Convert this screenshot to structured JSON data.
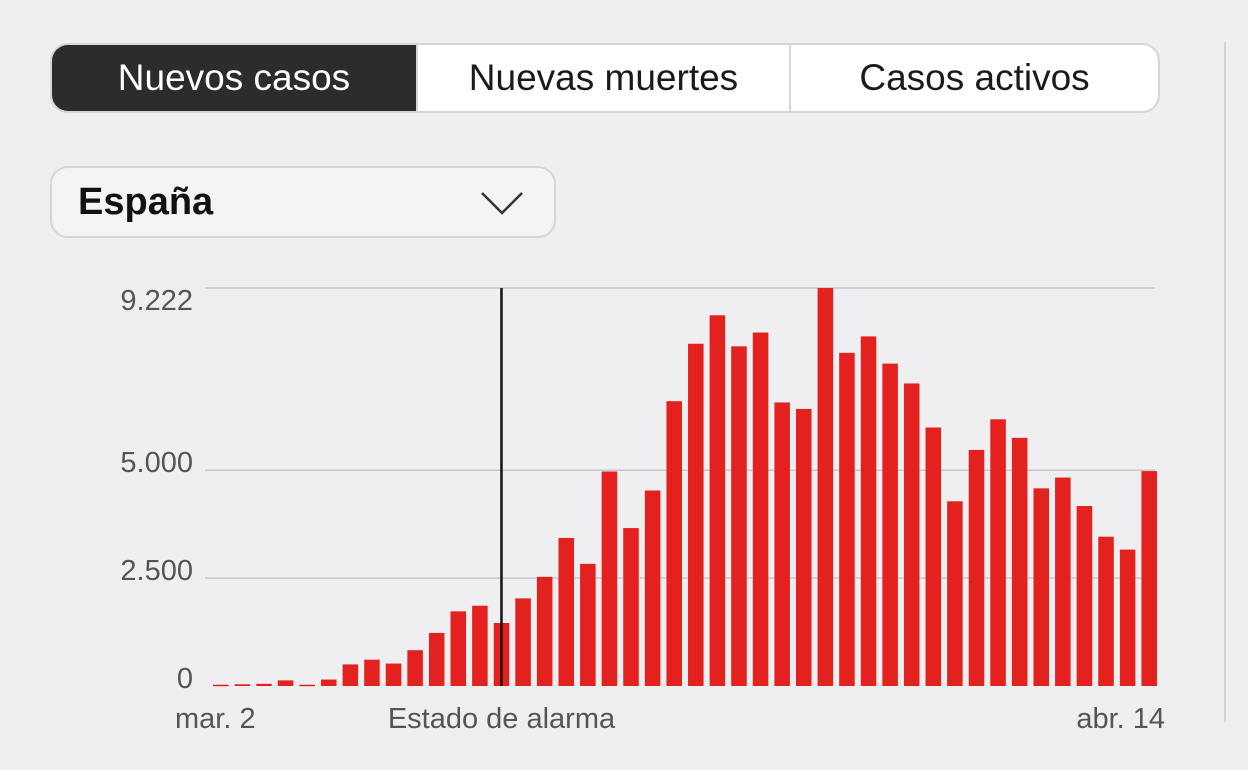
{
  "tabs": [
    {
      "label": "Nuevos casos",
      "active": true
    },
    {
      "label": "Nuevas muertes",
      "active": false
    },
    {
      "label": "Casos activos",
      "active": false
    }
  ],
  "region_select": {
    "value": "España"
  },
  "colors": {
    "bar": "#e3221f",
    "active_tab_bg": "#2c2c2e",
    "gridline": "#c8c8cc",
    "marker_line": "#111111"
  },
  "chart_data": {
    "type": "bar",
    "title": "",
    "xlabel": "",
    "ylabel": "",
    "ylim": [
      0,
      9222
    ],
    "y_ticks": [
      {
        "value": 0,
        "label": "0"
      },
      {
        "value": 2500,
        "label": "2.500"
      },
      {
        "value": 5000,
        "label": "5.000"
      },
      {
        "value": 9222,
        "label": "9.222"
      }
    ],
    "x_tick_labels": [
      {
        "index": 0,
        "label": "mar. 2"
      },
      {
        "index": 43,
        "label": "abr. 14"
      }
    ],
    "annotation": {
      "index": 13.3,
      "label": "Estado de alarma"
    },
    "categories": [
      "mar. 2",
      "mar. 3",
      "mar. 4",
      "mar. 5",
      "mar. 6",
      "mar. 7",
      "mar. 8",
      "mar. 9",
      "mar. 10",
      "mar. 11",
      "mar. 12",
      "mar. 13",
      "mar. 14",
      "mar. 15",
      "mar. 16",
      "mar. 17",
      "mar. 18",
      "mar. 19",
      "mar. 20",
      "mar. 21",
      "mar. 22",
      "mar. 23",
      "mar. 24",
      "mar. 25",
      "mar. 26",
      "mar. 27",
      "mar. 28",
      "mar. 29",
      "mar. 30",
      "mar. 31",
      "abr. 1",
      "abr. 2",
      "abr. 3",
      "abr. 4",
      "abr. 5",
      "abr. 6",
      "abr. 7",
      "abr. 8",
      "abr. 9",
      "abr. 10",
      "abr. 11",
      "abr. 12",
      "abr. 13",
      "abr. 14"
    ],
    "values": [
      30,
      40,
      50,
      130,
      30,
      150,
      500,
      610,
      520,
      830,
      1230,
      1730,
      1860,
      1460,
      2030,
      2530,
      3430,
      2830,
      4970,
      3660,
      4530,
      6600,
      7930,
      8590,
      7870,
      8190,
      6570,
      6420,
      9222,
      7720,
      8100,
      7470,
      7010,
      5990,
      4280,
      5470,
      6180,
      5750,
      4580,
      4830,
      4170,
      3460,
      3160,
      4980
    ]
  }
}
